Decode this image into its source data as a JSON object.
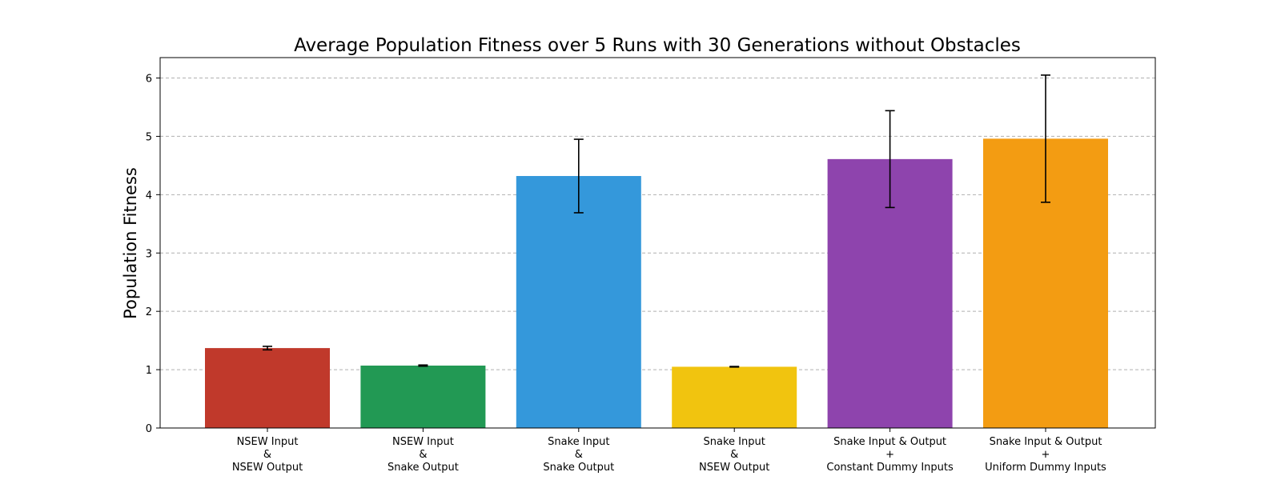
{
  "chart_data": {
    "type": "bar",
    "title": "Average Population Fitness over 5 Runs with 30 Generations without Obstacles",
    "xlabel": "",
    "ylabel": "Population Fitness",
    "ylim": [
      0,
      6.35
    ],
    "yticks": [
      0,
      1,
      2,
      3,
      4,
      5,
      6
    ],
    "grid": "horizontal-dashed",
    "categories": [
      [
        "NSEW Input",
        "&",
        "NSEW Output"
      ],
      [
        "NSEW Input",
        "&",
        "Snake Output"
      ],
      [
        "Snake Input",
        "&",
        "Snake Output"
      ],
      [
        "Snake Input",
        "&",
        "NSEW Output"
      ],
      [
        "Snake Input & Output",
        "+",
        "Constant Dummy Inputs"
      ],
      [
        "Snake Input & Output",
        "+",
        "Uniform Dummy Inputs"
      ]
    ],
    "values": [
      1.37,
      1.07,
      4.32,
      1.05,
      4.61,
      4.96
    ],
    "errors": [
      0.03,
      0.01,
      0.63,
      0.005,
      0.83,
      1.09
    ],
    "colors": [
      "#c0392b",
      "#229954",
      "#3498db",
      "#f1c40f",
      "#8e44ad",
      "#f39c12"
    ]
  }
}
